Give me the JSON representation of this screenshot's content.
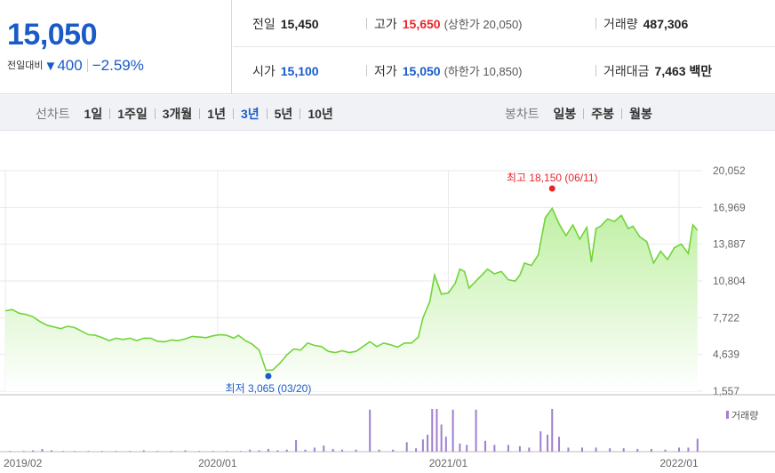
{
  "quote": {
    "price": "15,050",
    "change_label": "전일대비",
    "change_arrow": "▼",
    "change_amount": "400",
    "change_pct": "−2.59%",
    "prev_close_label": "전일",
    "prev_close": "15,450",
    "high_label": "고가",
    "high": "15,650",
    "upper_limit": "(상한가 20,050)",
    "volume_label": "거래량",
    "volume": "487,306",
    "open_label": "시가",
    "open": "15,100",
    "low_label": "저가",
    "low": "15,050",
    "lower_limit": "(하한가 10,850)",
    "amount_label": "거래대금",
    "amount": "7,463 백만"
  },
  "periods": {
    "line_label": "선차트",
    "line_items": [
      "1일",
      "1주일",
      "3개월",
      "1년",
      "3년",
      "5년",
      "10년"
    ],
    "active": "3년",
    "candle_label": "봉차트",
    "candle_items": [
      "일봉",
      "주봉",
      "월봉"
    ]
  },
  "chart_data": {
    "type": "area",
    "x_ticks": [
      "2019/02",
      "2020/01",
      "2021/01",
      "2022/01"
    ],
    "x_range": [
      2019.08,
      2022.1
    ],
    "y_ticks": [
      "20,052",
      "16,969",
      "13,887",
      "10,804",
      "7,722",
      "4,639",
      "1,557"
    ],
    "ylim": [
      1557,
      20052
    ],
    "max_label": "최고 18,150 (06/11)",
    "max_point": {
      "x": 2021.45,
      "y": 18150
    },
    "min_label": "최저 3,065 (03/20)",
    "min_point": {
      "x": 2020.22,
      "y": 3065
    },
    "volume_legend": "거래량",
    "colors": {
      "line": "#72d33a",
      "fill_top": "#bff0a3",
      "fill_bottom": "#ffffff",
      "max": "#e8262b",
      "min": "#1a5bc9",
      "volume": "#a07ed0"
    },
    "series": [
      {
        "values": [
          [
            2019.08,
            8300
          ],
          [
            2019.11,
            8400
          ],
          [
            2019.14,
            8100
          ],
          [
            2019.17,
            8000
          ],
          [
            2019.2,
            7800
          ],
          [
            2019.23,
            7400
          ],
          [
            2019.26,
            7100
          ],
          [
            2019.29,
            6950
          ],
          [
            2019.32,
            6800
          ],
          [
            2019.35,
            7000
          ],
          [
            2019.38,
            6900
          ],
          [
            2019.41,
            6600
          ],
          [
            2019.44,
            6300
          ],
          [
            2019.47,
            6250
          ],
          [
            2019.5,
            6050
          ],
          [
            2019.53,
            5800
          ],
          [
            2019.56,
            6000
          ],
          [
            2019.59,
            5900
          ],
          [
            2019.62,
            6000
          ],
          [
            2019.65,
            5800
          ],
          [
            2019.68,
            6000
          ],
          [
            2019.71,
            6000
          ],
          [
            2019.74,
            5750
          ],
          [
            2019.77,
            5700
          ],
          [
            2019.8,
            5850
          ],
          [
            2019.83,
            5800
          ],
          [
            2019.86,
            5950
          ],
          [
            2019.89,
            6150
          ],
          [
            2019.92,
            6100
          ],
          [
            2019.95,
            6050
          ],
          [
            2019.98,
            6200
          ],
          [
            2020.01,
            6300
          ],
          [
            2020.04,
            6250
          ],
          [
            2020.07,
            6000
          ],
          [
            2020.09,
            6250
          ],
          [
            2020.12,
            5800
          ],
          [
            2020.15,
            5500
          ],
          [
            2020.18,
            5000
          ],
          [
            2020.21,
            3300
          ],
          [
            2020.24,
            3350
          ],
          [
            2020.27,
            3900
          ],
          [
            2020.3,
            4600
          ],
          [
            2020.33,
            5100
          ],
          [
            2020.36,
            5000
          ],
          [
            2020.39,
            5600
          ],
          [
            2020.42,
            5400
          ],
          [
            2020.45,
            5300
          ],
          [
            2020.48,
            4900
          ],
          [
            2020.51,
            4800
          ],
          [
            2020.54,
            4950
          ],
          [
            2020.57,
            4800
          ],
          [
            2020.6,
            4900
          ],
          [
            2020.63,
            5300
          ],
          [
            2020.66,
            5700
          ],
          [
            2020.69,
            5300
          ],
          [
            2020.72,
            5600
          ],
          [
            2020.75,
            5450
          ],
          [
            2020.78,
            5250
          ],
          [
            2020.81,
            5600
          ],
          [
            2020.84,
            5600
          ],
          [
            2020.87,
            6100
          ],
          [
            2020.89,
            7700
          ],
          [
            2020.92,
            9100
          ],
          [
            2020.94,
            11300
          ],
          [
            2020.97,
            9700
          ],
          [
            2021.0,
            9800
          ],
          [
            2021.03,
            10600
          ],
          [
            2021.05,
            11800
          ],
          [
            2021.07,
            11600
          ],
          [
            2021.09,
            10200
          ],
          [
            2021.11,
            10600
          ],
          [
            2021.14,
            11200
          ],
          [
            2021.17,
            11800
          ],
          [
            2021.2,
            11400
          ],
          [
            2021.23,
            11600
          ],
          [
            2021.26,
            10900
          ],
          [
            2021.29,
            10800
          ],
          [
            2021.31,
            11300
          ],
          [
            2021.33,
            12300
          ],
          [
            2021.36,
            12100
          ],
          [
            2021.39,
            13000
          ],
          [
            2021.42,
            16100
          ],
          [
            2021.45,
            16900
          ],
          [
            2021.48,
            15600
          ],
          [
            2021.51,
            14600
          ],
          [
            2021.54,
            15500
          ],
          [
            2021.57,
            14300
          ],
          [
            2021.6,
            15300
          ],
          [
            2021.62,
            12400
          ],
          [
            2021.64,
            15200
          ],
          [
            2021.66,
            15400
          ],
          [
            2021.69,
            16000
          ],
          [
            2021.72,
            15800
          ],
          [
            2021.75,
            16300
          ],
          [
            2021.78,
            15200
          ],
          [
            2021.8,
            15400
          ],
          [
            2021.83,
            14500
          ],
          [
            2021.86,
            14100
          ],
          [
            2021.89,
            12300
          ],
          [
            2021.92,
            13300
          ],
          [
            2021.95,
            12600
          ],
          [
            2021.98,
            13600
          ],
          [
            2022.01,
            13900
          ],
          [
            2022.04,
            13100
          ],
          [
            2022.06,
            15500
          ],
          [
            2022.08,
            15050
          ]
        ]
      }
    ],
    "volume": [
      [
        2019.1,
        1
      ],
      [
        2019.16,
        1
      ],
      [
        2019.2,
        2
      ],
      [
        2019.24,
        4
      ],
      [
        2019.28,
        2
      ],
      [
        2019.33,
        1
      ],
      [
        2019.38,
        1
      ],
      [
        2019.44,
        1
      ],
      [
        2019.5,
        1
      ],
      [
        2019.56,
        1
      ],
      [
        2019.62,
        1
      ],
      [
        2019.68,
        2
      ],
      [
        2019.74,
        1
      ],
      [
        2019.8,
        1
      ],
      [
        2019.86,
        2
      ],
      [
        2019.92,
        1
      ],
      [
        2019.98,
        1
      ],
      [
        2020.04,
        1
      ],
      [
        2020.1,
        1
      ],
      [
        2020.14,
        3
      ],
      [
        2020.18,
        2
      ],
      [
        2020.22,
        4
      ],
      [
        2020.26,
        2
      ],
      [
        2020.3,
        3
      ],
      [
        2020.34,
        17
      ],
      [
        2020.38,
        3
      ],
      [
        2020.42,
        6
      ],
      [
        2020.46,
        9
      ],
      [
        2020.5,
        4
      ],
      [
        2020.54,
        3
      ],
      [
        2020.6,
        3
      ],
      [
        2020.66,
        62
      ],
      [
        2020.7,
        3
      ],
      [
        2020.76,
        3
      ],
      [
        2020.82,
        14
      ],
      [
        2020.86,
        5
      ],
      [
        2020.89,
        18
      ],
      [
        2020.91,
        25
      ],
      [
        2020.93,
        63
      ],
      [
        2020.95,
        63
      ],
      [
        2020.97,
        40
      ],
      [
        2020.99,
        22
      ],
      [
        2021.02,
        62
      ],
      [
        2021.05,
        12
      ],
      [
        2021.08,
        10
      ],
      [
        2021.12,
        62
      ],
      [
        2021.16,
        16
      ],
      [
        2021.2,
        10
      ],
      [
        2021.26,
        10
      ],
      [
        2021.31,
        8
      ],
      [
        2021.35,
        6
      ],
      [
        2021.4,
        30
      ],
      [
        2021.43,
        25
      ],
      [
        2021.45,
        63
      ],
      [
        2021.48,
        22
      ],
      [
        2021.52,
        6
      ],
      [
        2021.58,
        6
      ],
      [
        2021.64,
        6
      ],
      [
        2021.7,
        5
      ],
      [
        2021.76,
        5
      ],
      [
        2021.82,
        4
      ],
      [
        2021.88,
        4
      ],
      [
        2021.94,
        3
      ],
      [
        2022.0,
        6
      ],
      [
        2022.04,
        6
      ],
      [
        2022.08,
        19
      ]
    ]
  }
}
